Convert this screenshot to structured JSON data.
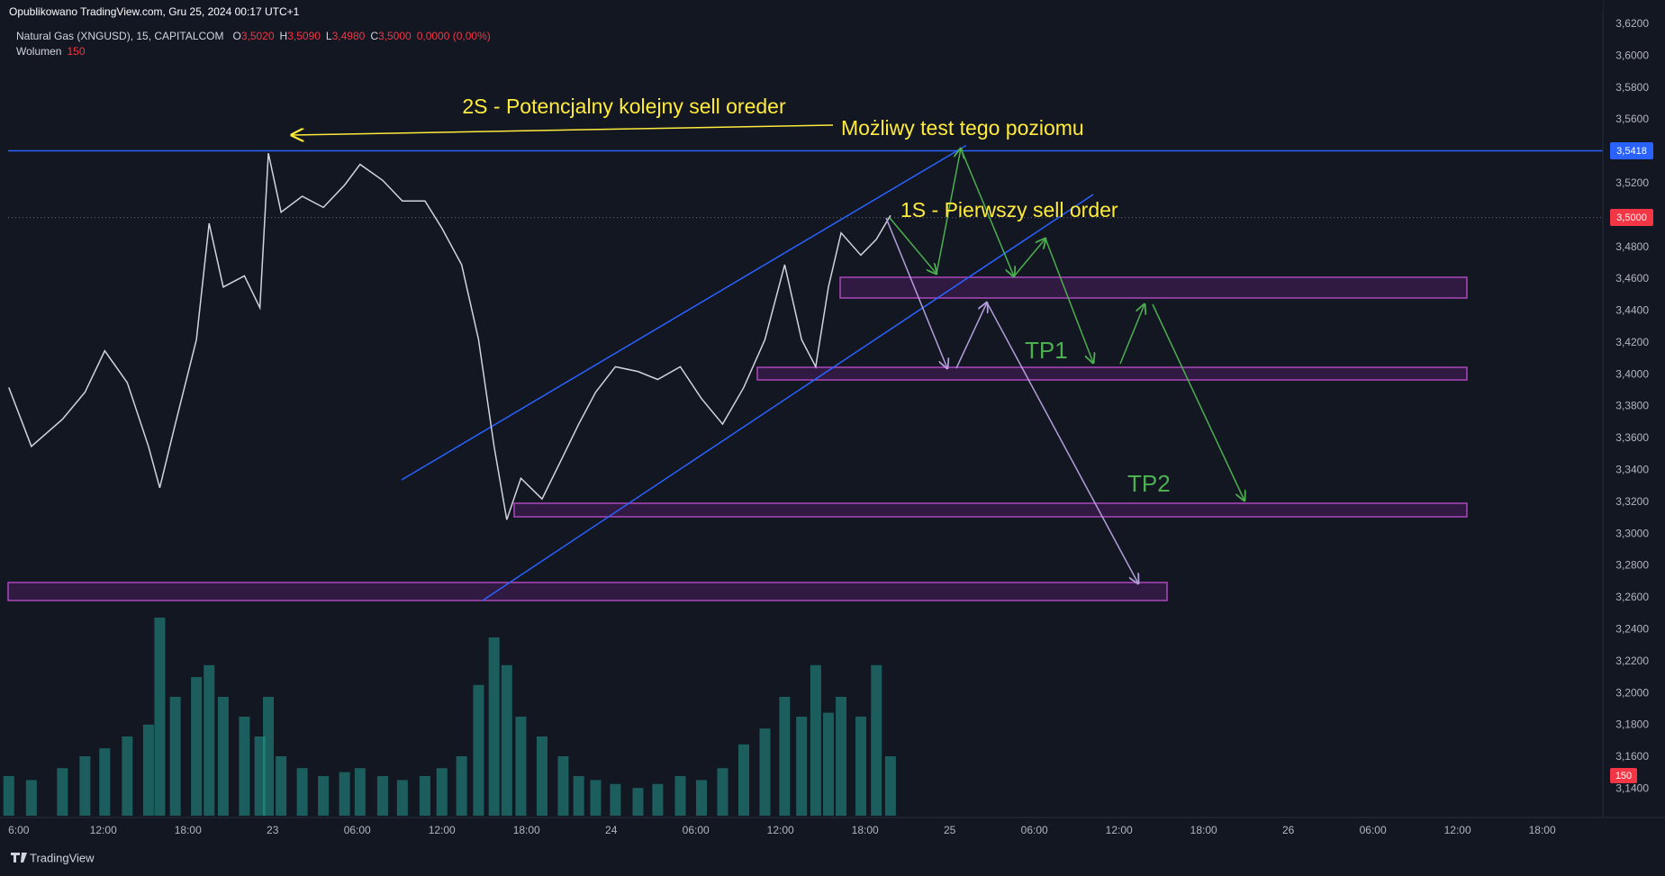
{
  "header": {
    "published": "Opublikowano TradingView.com, Gru 25, 2024 00:17 UTC+1",
    "symbol": "Natural Gas (XNGUSD), 15, CAPITALCOM",
    "ohlc": [
      {
        "label": "O",
        "value": "3,5020"
      },
      {
        "label": "H",
        "value": "3,5090"
      },
      {
        "label": "L",
        "value": "3,4980"
      },
      {
        "label": "C",
        "value": "3,5000"
      }
    ],
    "change": "0,0000 (0,00%)",
    "volume_label": "Wolumen",
    "volume_value": "150"
  },
  "annotations": {
    "note_2s": "2S - Potencjalny kolejny sell oreder",
    "note_test": "Możliwy test tego poziomu",
    "note_1s": "1S - Pierwszy sell order",
    "tp1": "TP1",
    "tp2": "TP2"
  },
  "price_labels": {
    "level": "3,5418",
    "last": "3,5000",
    "volume": "150"
  },
  "footer": {
    "brand": "TradingView"
  },
  "chart_data": {
    "type": "line",
    "color": "#d1d4dc",
    "volume_color": "#26a69a",
    "xlim": [
      -0.75,
      112.3
    ],
    "ylim": [
      3.13,
      3.625
    ],
    "xticks": [
      {
        "value": 0,
        "label": "6:00"
      },
      {
        "value": 6,
        "label": "12:00"
      },
      {
        "value": 12,
        "label": "18:00"
      },
      {
        "value": 18,
        "label": "23"
      },
      {
        "value": 24,
        "label": "06:00"
      },
      {
        "value": 30,
        "label": "12:00"
      },
      {
        "value": 36,
        "label": "18:00"
      },
      {
        "value": 42,
        "label": "24"
      },
      {
        "value": 48,
        "label": "06:00"
      },
      {
        "value": 54,
        "label": "12:00"
      },
      {
        "value": 60,
        "label": "18:00"
      },
      {
        "value": 66,
        "label": "25"
      },
      {
        "value": 72,
        "label": "06:00"
      },
      {
        "value": 78,
        "label": "12:00"
      },
      {
        "value": 84,
        "label": "18:00"
      },
      {
        "value": 90,
        "label": "26"
      },
      {
        "value": 96,
        "label": "06:00"
      },
      {
        "value": 102,
        "label": "12:00"
      },
      {
        "value": 108,
        "label": "18:00"
      }
    ],
    "yticks": [
      {
        "value": 3.14,
        "label": "3,1400"
      },
      {
        "value": 3.16,
        "label": "3,1600"
      },
      {
        "value": 3.18,
        "label": "3,1800"
      },
      {
        "value": 3.2,
        "label": "3,2000"
      },
      {
        "value": 3.22,
        "label": "3,2200"
      },
      {
        "value": 3.24,
        "label": "3,2400"
      },
      {
        "value": 3.26,
        "label": "3,2600"
      },
      {
        "value": 3.28,
        "label": "3,2800"
      },
      {
        "value": 3.3,
        "label": "3,3000"
      },
      {
        "value": 3.32,
        "label": "3,3200"
      },
      {
        "value": 3.34,
        "label": "3,3400"
      },
      {
        "value": 3.36,
        "label": "3,3600"
      },
      {
        "value": 3.38,
        "label": "3,3800"
      },
      {
        "value": 3.4,
        "label": "3,4000"
      },
      {
        "value": 3.42,
        "label": "3,4200"
      },
      {
        "value": 3.44,
        "label": "3,4400"
      },
      {
        "value": 3.46,
        "label": "3,4600"
      },
      {
        "value": 3.48,
        "label": "3,4800"
      },
      {
        "value": 3.5,
        "label": "3,5000"
      },
      {
        "value": 3.52,
        "label": "3,5200"
      },
      {
        "value": 3.54,
        "label": "3,5400"
      },
      {
        "value": 3.56,
        "label": "3,5600"
      },
      {
        "value": 3.58,
        "label": "3,5800"
      },
      {
        "value": 3.6,
        "label": "3,6000"
      },
      {
        "value": 3.62,
        "label": "3,6200"
      }
    ],
    "x": [
      -0.7,
      0.9,
      3.1,
      4.7,
      6.1,
      7.7,
      9.2,
      10.0,
      11.1,
      12.6,
      13.5,
      14.5,
      16.0,
      17.1,
      17.7,
      18.6,
      20.1,
      21.6,
      23.1,
      24.2,
      25.8,
      27.2,
      28.8,
      30.0,
      31.4,
      32.6,
      33.7,
      34.6,
      35.6,
      37.1,
      38.6,
      39.7,
      40.9,
      42.3,
      43.9,
      45.3,
      46.9,
      48.4,
      49.9,
      51.4,
      52.9,
      54.3,
      55.5,
      56.5,
      57.4,
      58.3,
      59.7,
      60.8,
      61.8
    ],
    "values": [
      3.392,
      3.355,
      3.372,
      3.389,
      3.415,
      3.395,
      3.355,
      3.329,
      3.369,
      3.422,
      3.495,
      3.455,
      3.462,
      3.442,
      3.539,
      3.502,
      3.512,
      3.505,
      3.519,
      3.532,
      3.522,
      3.509,
      3.509,
      3.492,
      3.469,
      3.422,
      3.355,
      3.309,
      3.335,
      3.322,
      3.349,
      3.369,
      3.389,
      3.405,
      3.402,
      3.397,
      3.405,
      3.385,
      3.369,
      3.392,
      3.422,
      3.469,
      3.422,
      3.405,
      3.455,
      3.489,
      3.475,
      3.485,
      3.5
    ],
    "volume": [
      100,
      90,
      120,
      150,
      170,
      200,
      230,
      500,
      300,
      350,
      380,
      300,
      250,
      200,
      300,
      150,
      120,
      100,
      110,
      120,
      100,
      90,
      100,
      120,
      150,
      330,
      450,
      380,
      250,
      200,
      150,
      100,
      90,
      80,
      70,
      80,
      100,
      90,
      120,
      180,
      220,
      300,
      250,
      380,
      260,
      300,
      250,
      380,
      150
    ]
  }
}
